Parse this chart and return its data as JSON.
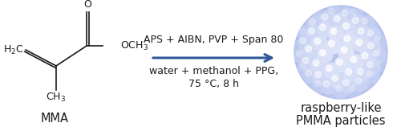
{
  "background_color": "#ffffff",
  "arrow_color": "#2e5899",
  "arrow_text_line1": "APS + AIBN, PVP + Span 80",
  "arrow_text_line2": "water + methanol + PPG,",
  "arrow_text_line3": "75 °C, 8 h",
  "label_mma": "MMA",
  "label_product_line1": "raspberry-like",
  "label_product_line2": "PMMA particles",
  "sphere_base_color": "#b8c4ee",
  "sphere_highlight_color": "#dde4f8",
  "sphere_dark_color": "#7080c0",
  "text_color": "#1a1a1a",
  "font_size_text": 9.0,
  "font_size_label": 10.5
}
